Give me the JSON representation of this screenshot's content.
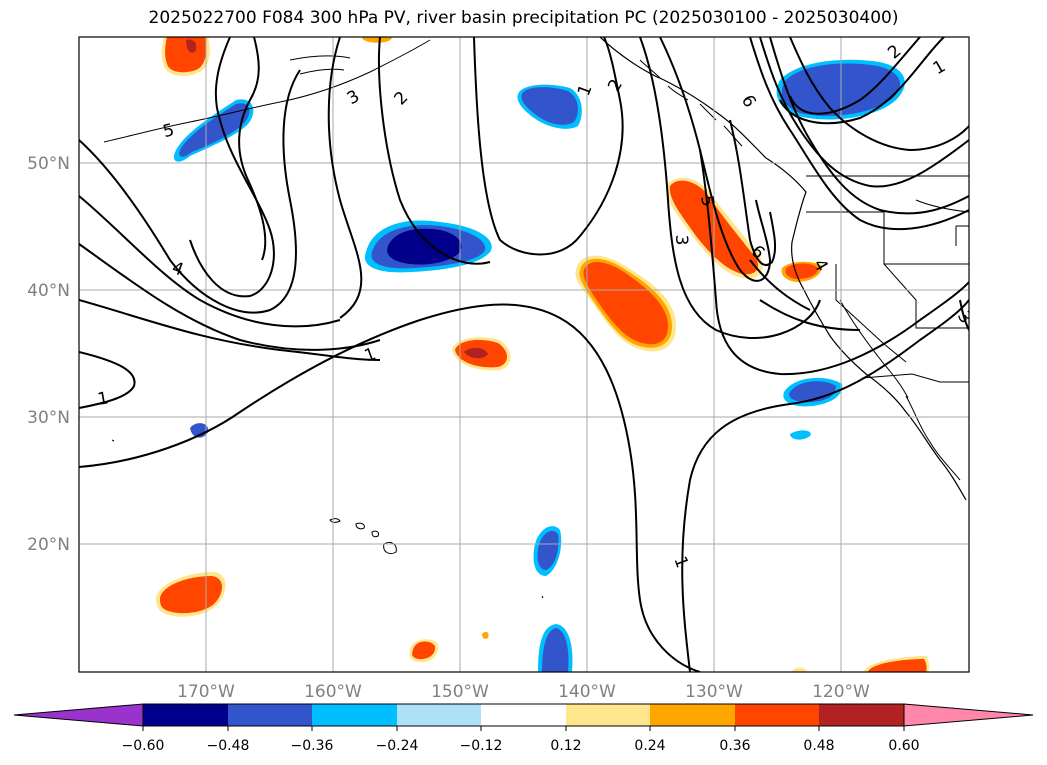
{
  "title": "2025022700 F084 300 hPa PV, river basin precipitation PC (2025030100 - 2025030400)",
  "lon_ticks": [
    "170°W",
    "160°W",
    "150°W",
    "140°W",
    "130°W",
    "120°W"
  ],
  "lat_ticks": [
    "50°N",
    "40°N",
    "30°N",
    "20°N"
  ],
  "contour_labels": [
    "5",
    "3",
    "2",
    "1",
    "2",
    "6",
    "1",
    "2",
    "5",
    "3",
    "6",
    "4",
    "4",
    "1",
    "1",
    "3",
    "1"
  ],
  "colorbar": {
    "tick_labels": [
      "−0.60",
      "−0.48",
      "−0.36",
      "−0.24",
      "−0.12",
      "0.12",
      "0.24",
      "0.36",
      "0.48",
      "0.60"
    ],
    "colors": [
      "#9933cc",
      "#00008b",
      "#3355cc",
      "#00bfff",
      "#aee0f7",
      "#ffffff",
      "#ffe68c",
      "#ffa500",
      "#ff4500",
      "#b22222",
      "#ff88aa"
    ]
  }
}
